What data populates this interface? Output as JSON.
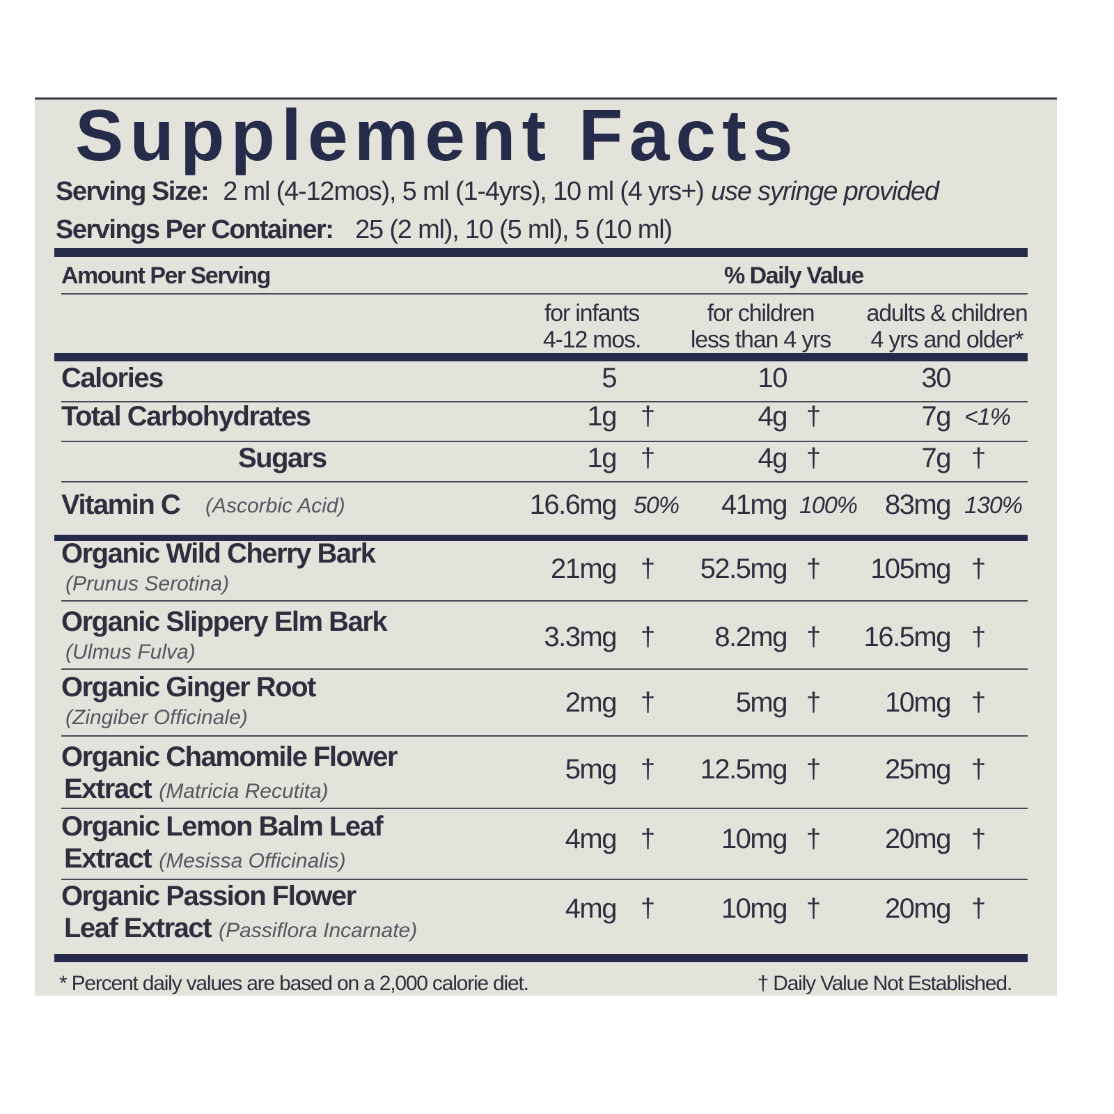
{
  "title": "Supplement Facts",
  "serving_size": {
    "label": "Serving Size:",
    "value": "2 ml (4-12mos), 5 ml (1-4yrs), 10 ml (4 yrs+)",
    "note": "use syringe provided"
  },
  "servings_per_container": {
    "label": "Servings Per Container:",
    "value": "25 (2 ml), 10 (5 ml), 5 (10 ml)"
  },
  "header": {
    "amount": "Amount Per Serving",
    "daily_value": "% Daily Value",
    "columns": [
      {
        "line1": "for infants",
        "line2": "4-12 mos."
      },
      {
        "line1": "for children",
        "line2": "less than 4 yrs"
      },
      {
        "line1": "adults & children",
        "line2": "4 yrs and older*"
      }
    ]
  },
  "rows": [
    {
      "name": "Calories",
      "values": [
        {
          "amt": "5",
          "dv": ""
        },
        {
          "amt": "10",
          "dv": ""
        },
        {
          "amt": "30",
          "dv": ""
        }
      ]
    },
    {
      "name": "Total Carbohydrates",
      "values": [
        {
          "amt": "1g",
          "dv": "†"
        },
        {
          "amt": "4g",
          "dv": "†"
        },
        {
          "amt": "7g",
          "dv": "<1%"
        }
      ]
    },
    {
      "name": "Sugars",
      "indent": true,
      "values": [
        {
          "amt": "1g",
          "dv": "†"
        },
        {
          "amt": "4g",
          "dv": "†"
        },
        {
          "amt": "7g",
          "dv": "†"
        }
      ]
    },
    {
      "name": "Vitamin C",
      "latin": "(Ascorbic Acid)",
      "values": [
        {
          "amt": "16.6mg",
          "dv": "50%"
        },
        {
          "amt": "41mg",
          "dv": "100%"
        },
        {
          "amt": "83mg",
          "dv": "130%"
        }
      ]
    },
    {
      "name": "Organic Wild Cherry Bark",
      "latin": "(Prunus Serotina)",
      "values": [
        {
          "amt": "21mg",
          "dv": "†"
        },
        {
          "amt": "52.5mg",
          "dv": "†"
        },
        {
          "amt": "105mg",
          "dv": "†"
        }
      ]
    },
    {
      "name": "Organic Slippery Elm Bark",
      "latin": "(Ulmus Fulva)",
      "values": [
        {
          "amt": "3.3mg",
          "dv": "†"
        },
        {
          "amt": "8.2mg",
          "dv": "†"
        },
        {
          "amt": "16.5mg",
          "dv": "†"
        }
      ]
    },
    {
      "name": "Organic Ginger Root",
      "latin": "(Zingiber Officinale)",
      "values": [
        {
          "amt": "2mg",
          "dv": "†"
        },
        {
          "amt": "5mg",
          "dv": "†"
        },
        {
          "amt": "10mg",
          "dv": "†"
        }
      ]
    },
    {
      "name": "Organic Chamomile Flower",
      "name2": "Extract",
      "latin": "(Matricia Recutita)",
      "values": [
        {
          "amt": "5mg",
          "dv": "†"
        },
        {
          "amt": "12.5mg",
          "dv": "†"
        },
        {
          "amt": "25mg",
          "dv": "†"
        }
      ]
    },
    {
      "name": "Organic Lemon Balm Leaf",
      "name2": "Extract",
      "latin": "(Mesissa Officinalis)",
      "values": [
        {
          "amt": "4mg",
          "dv": "†"
        },
        {
          "amt": "10mg",
          "dv": "†"
        },
        {
          "amt": "20mg",
          "dv": "†"
        }
      ]
    },
    {
      "name": "Organic Passion Flower",
      "name2": "Leaf  Extract",
      "latin": "(Passiflora Incarnate)",
      "values": [
        {
          "amt": "4mg",
          "dv": "†"
        },
        {
          "amt": "10mg",
          "dv": "†"
        },
        {
          "amt": "20mg",
          "dv": "†"
        }
      ]
    }
  ],
  "footnotes": {
    "left": "* Percent daily values are based on a 2,000 calorie diet.",
    "right": "† Daily Value Not Established."
  },
  "colors": {
    "navy": "#262b4a",
    "panel": "#e3e2db",
    "text": "#2d2f3e"
  }
}
